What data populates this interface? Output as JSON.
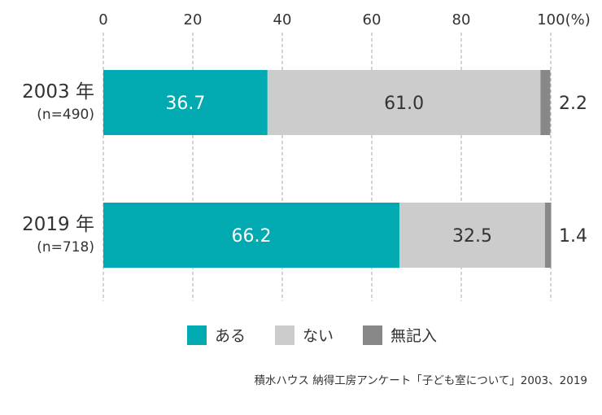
{
  "chart_data": {
    "type": "bar",
    "orientation": "horizontal",
    "stacked": true,
    "unit_label": "(%)",
    "xlim": [
      0,
      100
    ],
    "ticks": [
      0,
      20,
      40,
      60,
      80,
      100
    ],
    "grid": true,
    "categories": [
      {
        "label": "2003 年",
        "sublabel": "(n=490)"
      },
      {
        "label": "2019 年",
        "sublabel": "(n=718)"
      }
    ],
    "series": [
      {
        "name": "ある",
        "color": "#00aab0",
        "values": [
          36.7,
          66.2
        ],
        "label_color": "#ffffff",
        "label_position": "inside"
      },
      {
        "name": "ない",
        "color": "#cccccc",
        "values": [
          61.0,
          32.5
        ],
        "label_color": "#333333",
        "label_position": "inside"
      },
      {
        "name": "無記入",
        "color": "#888888",
        "values": [
          2.2,
          1.4
        ],
        "label_color": "#333333",
        "label_position": "outside"
      }
    ],
    "value_labels": [
      [
        "36.7",
        "61.0",
        "2.2"
      ],
      [
        "66.2",
        "32.5",
        "1.4"
      ]
    ],
    "legend_position": "bottom"
  },
  "source": "積水ハウス 納得工房アンケート「子ども室について」2003、2019"
}
